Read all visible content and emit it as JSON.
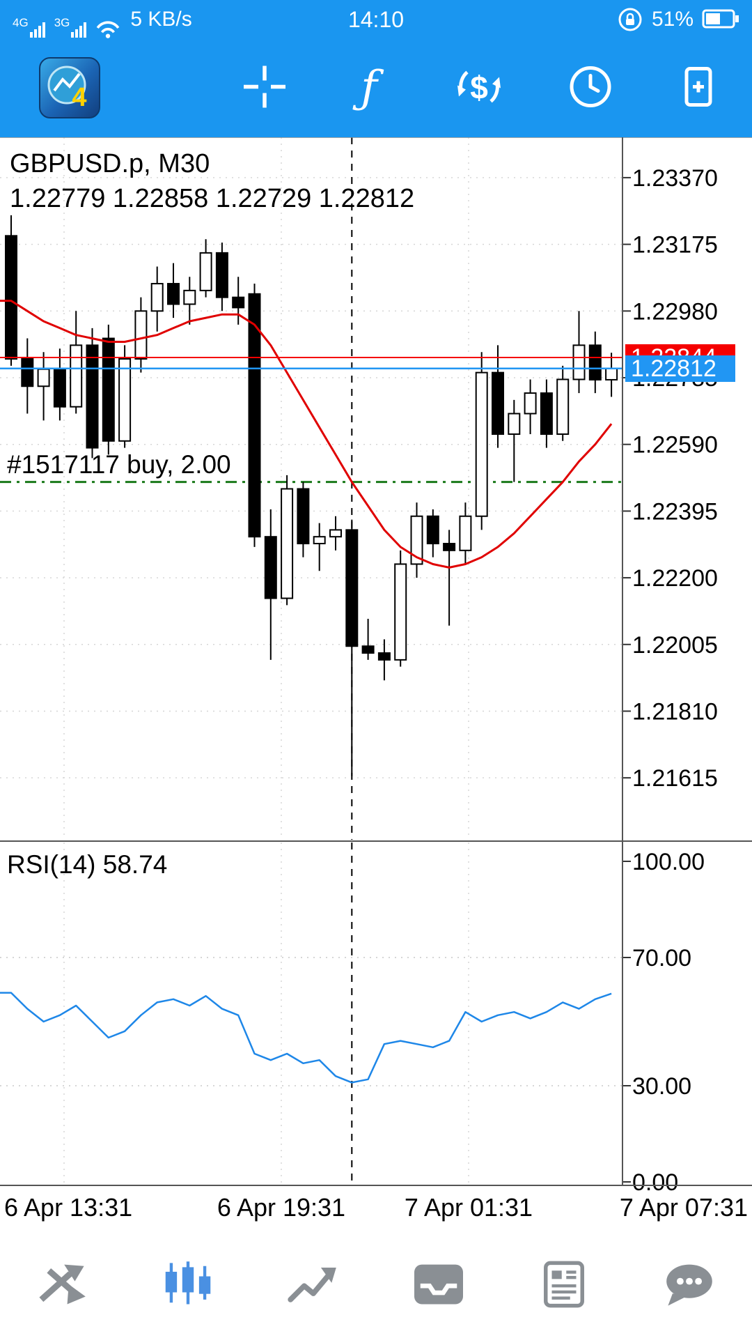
{
  "colors": {
    "header_blue": "#1a96f0",
    "bid_red": "#f50000",
    "ask_blue": "#2196f3",
    "ma_red": "#e00000",
    "rsi_blue": "#1e87e8",
    "position_green": "#1a7a1a",
    "nav_active": "#4a90e2",
    "nav_gray": "#8a8f94"
  },
  "status_bar": {
    "net1": "4G",
    "net2": "3G",
    "speed": "5 KB/s",
    "time": "14:10",
    "battery_percent": "51%"
  },
  "toolbar": {
    "items": [
      "menu",
      "app-logo",
      "crosshair",
      "indicators",
      "currency-exchange",
      "timeframes",
      "new-order"
    ]
  },
  "chart": {
    "symbol_label": "GBPUSD.p, M30",
    "ohlc_label": "1.22779 1.22858 1.22729 1.22812",
    "position_label": "#1517117 buy, 2.00",
    "bid_price": "1.22844",
    "ask_price": "1.22812"
  },
  "rsi": {
    "label": "RSI(14) 58.74"
  },
  "time_axis": [
    "6 Apr 13:31",
    "6 Apr 19:31",
    "7 Apr 01:31",
    "7 Apr 07:31"
  ],
  "bottom_nav": {
    "items": [
      "quotes",
      "charts",
      "trade",
      "mailbox",
      "news",
      "messages"
    ],
    "active": "charts"
  },
  "chart_data": [
    {
      "type": "candlestick",
      "title": "GBPUSD.p, M30",
      "ylim": [
        1.21434,
        1.23488
      ],
      "y_tick_labels": [
        "1.23370",
        "1.23175",
        "1.22980",
        "1.22785",
        "1.22590",
        "1.22395",
        "1.22200",
        "1.22005",
        "1.21810",
        "1.21615"
      ],
      "x_tick_labels": [
        "6 Apr 13:31",
        "6 Apr 19:31",
        "7 Apr 01:31",
        "7 Apr 07:31"
      ],
      "bid": 1.22844,
      "ask": 1.22812,
      "position_price": 1.2248,
      "separator_index": 21,
      "candles": [
        [
          1.232,
          1.2326,
          1.2282,
          1.2284
        ],
        [
          1.2284,
          1.229,
          1.2268,
          1.2276
        ],
        [
          1.2276,
          1.2286,
          1.2266,
          1.2281
        ],
        [
          1.2281,
          1.2287,
          1.2266,
          1.227
        ],
        [
          1.227,
          1.2298,
          1.2268,
          1.2288
        ],
        [
          1.2288,
          1.2293,
          1.2255,
          1.2258
        ],
        [
          1.229,
          1.2294,
          1.2256,
          1.226
        ],
        [
          1.226,
          1.2288,
          1.2258,
          1.2284
        ],
        [
          1.2284,
          1.2302,
          1.228,
          1.2298
        ],
        [
          1.2298,
          1.2311,
          1.2292,
          1.2306
        ],
        [
          1.2306,
          1.2312,
          1.2296,
          1.23
        ],
        [
          1.23,
          1.2308,
          1.2294,
          1.2304
        ],
        [
          1.2304,
          1.2319,
          1.2302,
          1.2315
        ],
        [
          1.2315,
          1.2318,
          1.2298,
          1.2302
        ],
        [
          1.2302,
          1.2308,
          1.2294,
          1.2299
        ],
        [
          1.2303,
          1.2306,
          1.2229,
          1.2232
        ],
        [
          1.2232,
          1.224,
          1.2196,
          1.2214
        ],
        [
          1.2214,
          1.225,
          1.2212,
          1.2246
        ],
        [
          1.2246,
          1.2248,
          1.2226,
          1.223
        ],
        [
          1.223,
          1.2236,
          1.2222,
          1.2232
        ],
        [
          1.2232,
          1.2238,
          1.2228,
          1.2234
        ],
        [
          1.2234,
          1.2237,
          1.2162,
          1.22
        ],
        [
          1.22,
          1.2208,
          1.2196,
          1.2198
        ],
        [
          1.2198,
          1.2202,
          1.219,
          1.2196
        ],
        [
          1.2196,
          1.2228,
          1.2194,
          1.2224
        ],
        [
          1.2224,
          1.2242,
          1.222,
          1.2238
        ],
        [
          1.2238,
          1.224,
          1.2226,
          1.223
        ],
        [
          1.223,
          1.2234,
          1.2206,
          1.2228
        ],
        [
          1.2228,
          1.2242,
          1.2224,
          1.2238
        ],
        [
          1.2238,
          1.2286,
          1.2234,
          1.228
        ],
        [
          1.228,
          1.2288,
          1.2258,
          1.2262
        ],
        [
          1.2262,
          1.2272,
          1.2248,
          1.2268
        ],
        [
          1.2268,
          1.2278,
          1.2262,
          1.2274
        ],
        [
          1.2274,
          1.2278,
          1.2258,
          1.2262
        ],
        [
          1.2262,
          1.2282,
          1.226,
          1.2278
        ],
        [
          1.2278,
          1.2298,
          1.2274,
          1.2288
        ],
        [
          1.2288,
          1.2292,
          1.2274,
          1.22779
        ],
        [
          1.22779,
          1.22858,
          1.22729,
          1.22812
        ]
      ],
      "ma_red": [
        1.2301,
        1.2298,
        1.2295,
        1.2293,
        1.2291,
        1.229,
        1.2289,
        1.2289,
        1.229,
        1.2291,
        1.2293,
        1.2295,
        1.2296,
        1.2297,
        1.2297,
        1.2294,
        1.2288,
        1.228,
        1.2272,
        1.2264,
        1.2256,
        1.2248,
        1.2241,
        1.2234,
        1.2229,
        1.2226,
        1.2224,
        1.2223,
        1.2224,
        1.2226,
        1.2229,
        1.2233,
        1.2238,
        1.2243,
        1.2248,
        1.2254,
        1.2259,
        1.2265
      ]
    },
    {
      "type": "line",
      "name": "RSI(14)",
      "current": 58.74,
      "ylim": [
        0,
        100
      ],
      "y_tick_labels": [
        "100.00",
        "70.00",
        "30.00",
        "0.00"
      ],
      "levels": [
        70,
        30
      ],
      "values": [
        59,
        54,
        50,
        52,
        55,
        50,
        45,
        47,
        52,
        56,
        57,
        55,
        58,
        54,
        52,
        40,
        38,
        40,
        37,
        38,
        33,
        31,
        32,
        43,
        44,
        43,
        42,
        44,
        53,
        50,
        52,
        53,
        51,
        53,
        56,
        54,
        57,
        58.74
      ]
    }
  ]
}
